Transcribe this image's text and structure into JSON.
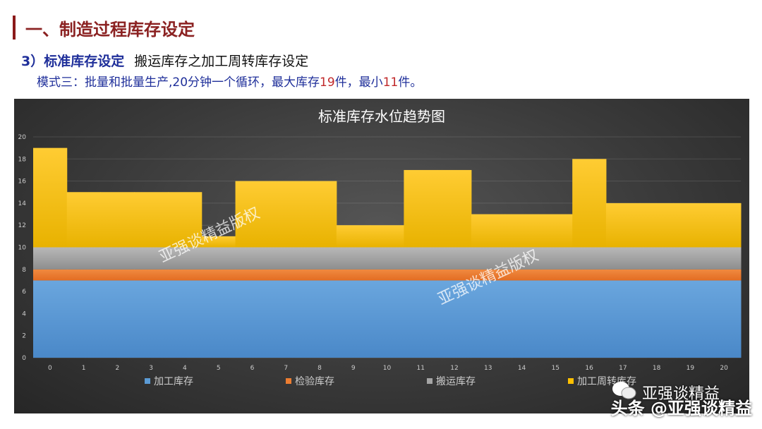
{
  "header": {
    "title": "一、制造过程库存设定",
    "subtitle_prefix": "3）标准库存设定",
    "subtitle": "搬运库存之加工周转库存设定",
    "desc_a": "模式三：批量和批量生产,20分钟一个循环，最大库存",
    "desc_max": "19",
    "desc_b": "件，最小",
    "desc_min": "11",
    "desc_c": "件。"
  },
  "watermarks": {
    "chart": "亚强谈精益版权",
    "brand": "亚强谈精益",
    "toutiao": "头条 @亚强谈精益"
  },
  "chart_data": {
    "type": "bar",
    "stacked": true,
    "title": "标准库存水位趋势图",
    "categories": [
      "0",
      "1",
      "2",
      "3",
      "4",
      "5",
      "6",
      "7",
      "8",
      "9",
      "10",
      "11",
      "12",
      "13",
      "14",
      "15",
      "16",
      "17",
      "18",
      "19",
      "20"
    ],
    "ylim": [
      0,
      20
    ],
    "yticks": [
      0,
      2,
      4,
      6,
      8,
      10,
      12,
      14,
      16,
      18,
      20
    ],
    "grid": true,
    "legend_position": "bottom",
    "series": [
      {
        "name": "加工库存",
        "color": "#5b9bd5",
        "values": [
          7,
          7,
          7,
          7,
          7,
          7,
          7,
          7,
          7,
          7,
          7,
          7,
          7,
          7,
          7,
          7,
          7,
          7,
          7,
          7,
          7
        ]
      },
      {
        "name": "检验库存",
        "color": "#ed7d31",
        "values": [
          1,
          1,
          1,
          1,
          1,
          1,
          1,
          1,
          1,
          1,
          1,
          1,
          1,
          1,
          1,
          1,
          1,
          1,
          1,
          1,
          1
        ]
      },
      {
        "name": "搬运库存",
        "color": "#a5a5a5",
        "values": [
          2,
          2,
          2,
          2,
          2,
          2,
          2,
          2,
          2,
          2,
          2,
          2,
          2,
          2,
          2,
          2,
          2,
          2,
          2,
          2,
          2
        ]
      },
      {
        "name": "加工周转库存",
        "color": "#ffc000",
        "values": [
          9,
          5,
          5,
          5,
          5,
          1,
          6,
          6,
          6,
          2,
          2,
          7,
          7,
          3,
          3,
          3,
          8,
          4,
          4,
          4,
          4
        ]
      }
    ]
  }
}
